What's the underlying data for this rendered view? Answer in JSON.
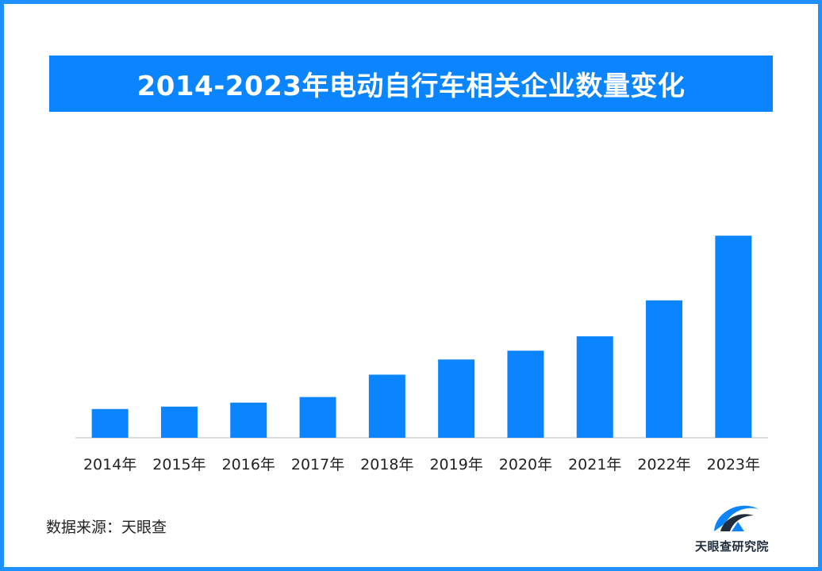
{
  "title": "2014-2023年电动自行车相关企业数量变化",
  "source_label": "数据来源：天眼查",
  "brand": {
    "name": "天眼查研究院"
  },
  "colors": {
    "accent": "#0a84ff",
    "border": "#1e90ff",
    "bar": "#0a84ff",
    "axis": "#d0d0d0"
  },
  "chart_data": {
    "type": "bar",
    "categories": [
      "2014年",
      "2015年",
      "2016年",
      "2017年",
      "2018年",
      "2019年",
      "2020年",
      "2021年",
      "2022年",
      "2023年"
    ],
    "values": [
      36,
      39,
      44,
      51,
      79,
      98,
      109,
      127,
      172,
      253
    ],
    "title": "2014-2023年电动自行车相关企业数量变化",
    "xlabel": "",
    "ylabel": "",
    "ylim": [
      0,
      280
    ],
    "grid": false,
    "legend": "none"
  }
}
